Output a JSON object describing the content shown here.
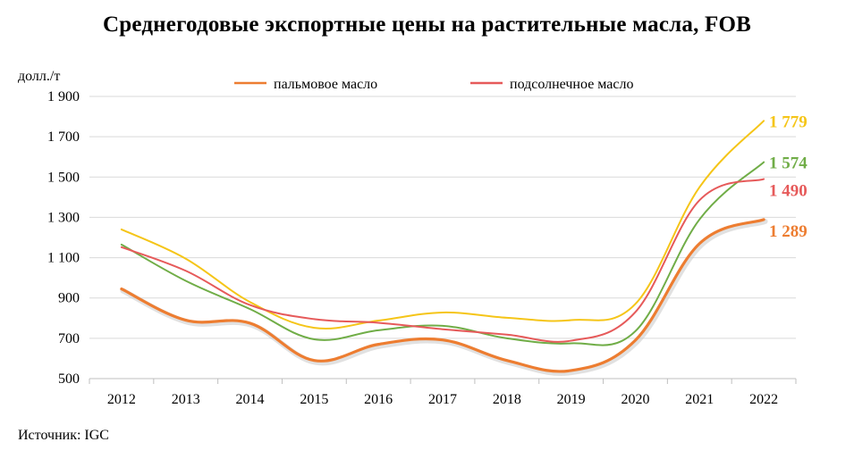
{
  "chart_data": {
    "type": "line",
    "title": "Среднегодовые экспортные цены на растительные масла, FOB",
    "ylabel": "долл./т",
    "xlabel": "",
    "ylim": [
      500,
      1900
    ],
    "y_ticks": [
      "1 900",
      "1 700",
      "1 500",
      "1 300",
      "1 100",
      "900",
      "700",
      "500"
    ],
    "y_tick_values": [
      1900,
      1700,
      1500,
      1300,
      1100,
      900,
      700,
      500
    ],
    "categories": [
      "2012",
      "2013",
      "2014",
      "2015",
      "2016",
      "2017",
      "2018",
      "2019",
      "2020",
      "2021",
      "2022"
    ],
    "grid": true,
    "legend_position": "top",
    "legend": [
      "пальмовое масло",
      "подсолнечное масло"
    ],
    "series": [
      {
        "color": "#F5C518",
        "values": [
          1240,
          1095,
          880,
          752,
          788,
          828,
          802,
          790,
          870,
          1450,
          1779
        ],
        "end_label": "1 779"
      },
      {
        "color": "#70AD47",
        "values": [
          1165,
          985,
          845,
          695,
          740,
          762,
          700,
          675,
          735,
          1290,
          1574
        ],
        "end_label": "1 574"
      },
      {
        "name": "подсолнечное масло",
        "color": "#E65A5A",
        "values": [
          1152,
          1035,
          865,
          795,
          777,
          745,
          718,
          688,
          830,
          1385,
          1490
        ],
        "end_label": "1 490"
      },
      {
        "name": "пальмовое масло",
        "color": "#ED7D31",
        "values": [
          945,
          790,
          775,
          590,
          670,
          692,
          590,
          540,
          690,
          1170,
          1289
        ],
        "end_label": "1 289"
      }
    ]
  },
  "source": "Источник: IGC"
}
